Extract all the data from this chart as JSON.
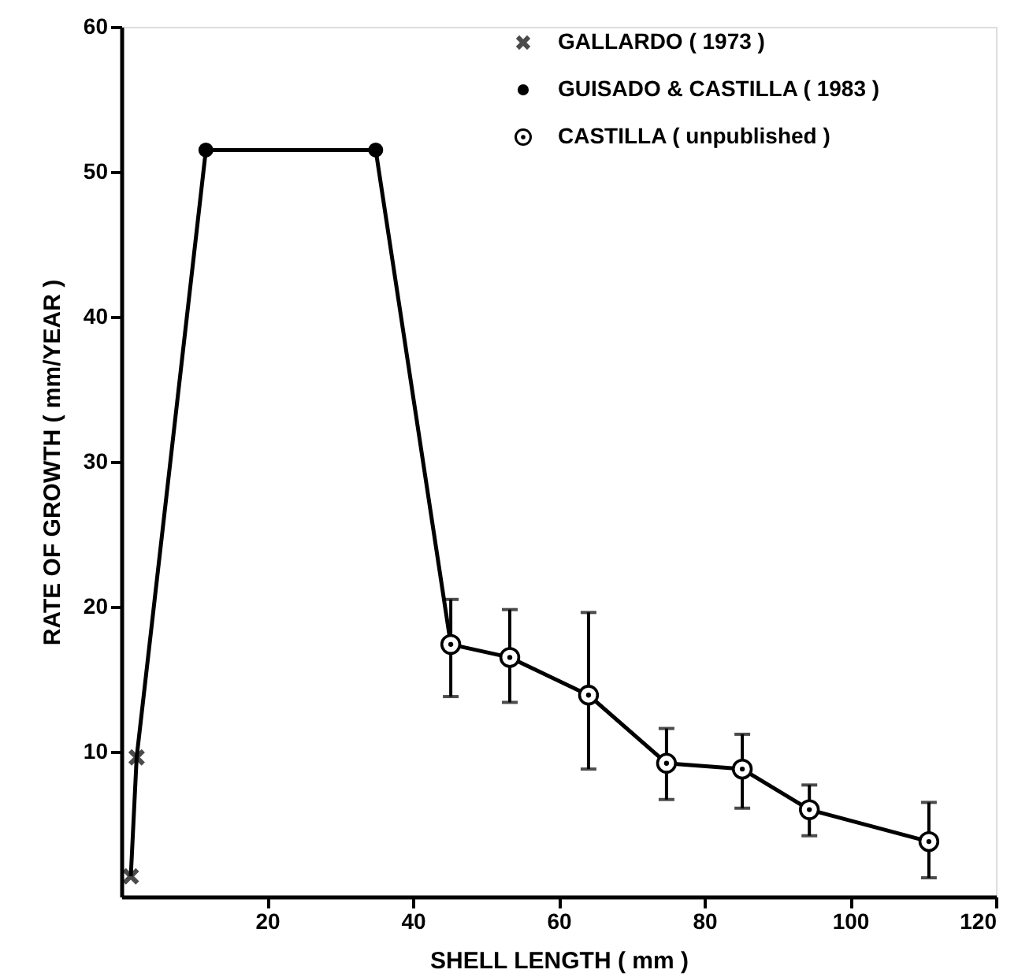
{
  "chart_data": {
    "type": "line",
    "xlabel": "SHELL LENGTH  ( mm )",
    "ylabel": "RATE OF GROWTH  ( mm/YEAR )",
    "xlim": [
      0,
      120
    ],
    "xticks": [
      20,
      40,
      60,
      80,
      100,
      120
    ],
    "ylim": [
      0,
      60
    ],
    "yticks": [
      10,
      20,
      30,
      40,
      50,
      60
    ],
    "grid": false,
    "legend": "top right",
    "series": [
      {
        "color": "#000000",
        "marker": "none",
        "x": [
          1.3,
          2.1,
          11.6,
          34.9,
          45.2,
          53.3,
          64.1,
          74.8,
          85.2,
          94.4,
          110.8
        ],
        "values": [
          1.4,
          9.6,
          51.5,
          51.5,
          17.4,
          16.5,
          13.9,
          9.2,
          8.8,
          6.0,
          3.8
        ]
      },
      {
        "type": "scatter",
        "name": "GALLARDO ( 1973 )",
        "color": "#000000",
        "marker": "cross",
        "x": [
          1.3,
          2.1
        ],
        "values": [
          1.4,
          9.6
        ]
      },
      {
        "type": "scatter",
        "name": "GUISADO & CASTILLA ( 1983 )",
        "color": "#000000",
        "marker": "circle",
        "x": [
          11.6,
          34.9
        ],
        "values": [
          51.5,
          51.5
        ]
      },
      {
        "type": "scatter",
        "name": "CASTILLA ( unpublished )",
        "color": "#000000",
        "marker": "circle-dot",
        "x": [
          45.2,
          53.3,
          64.1,
          74.8,
          85.2,
          94.4,
          110.8
        ],
        "values": [
          17.4,
          16.5,
          13.9,
          9.2,
          8.8,
          6.0,
          3.8
        ],
        "errors": [
          [
            13.8,
            20.5
          ],
          [
            13.4,
            19.8
          ],
          [
            8.8,
            19.6
          ],
          [
            6.7,
            11.6
          ],
          [
            6.1,
            11.2
          ],
          [
            4.2,
            7.7
          ],
          [
            1.3,
            6.5
          ]
        ]
      }
    ]
  }
}
